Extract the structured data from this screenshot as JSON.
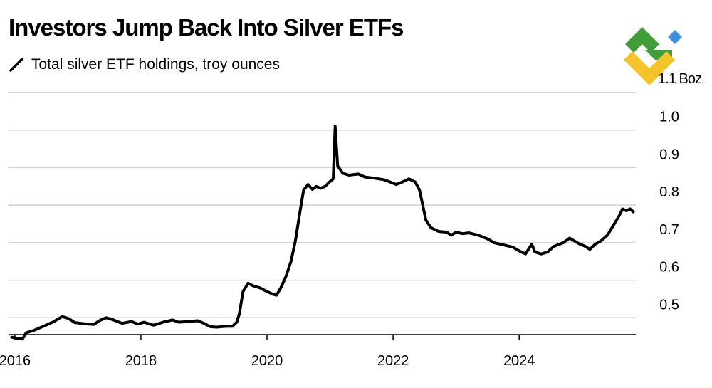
{
  "chart_data": {
    "type": "line",
    "title": "Investors Jump Back Into Silver ETFs",
    "legend": "Total silver ETF holdings, troy ounces",
    "y_unit_label": "1.1 Boz",
    "y_ticks": [
      0.5,
      0.6,
      0.7,
      0.8,
      0.9,
      1.0
    ],
    "y_tick_labels": [
      "0.5",
      "0.6",
      "0.7",
      "0.8",
      "0.9",
      "1.0"
    ],
    "ylim": [
      0.455,
      1.1
    ],
    "xlim": [
      2015.9,
      2025.85
    ],
    "x_ticks": [
      2016,
      2018,
      2020,
      2022,
      2024
    ],
    "x_tick_labels": [
      "2016",
      "2018",
      "2020",
      "2022",
      "2024"
    ],
    "grid": true,
    "line_color": "#000000",
    "series": [
      {
        "name": "Total silver ETF holdings",
        "points": [
          [
            2015.95,
            0.448
          ],
          [
            2016.05,
            0.445
          ],
          [
            2016.12,
            0.443
          ],
          [
            2016.18,
            0.46
          ],
          [
            2016.3,
            0.466
          ],
          [
            2016.45,
            0.477
          ],
          [
            2016.6,
            0.488
          ],
          [
            2016.75,
            0.503
          ],
          [
            2016.85,
            0.498
          ],
          [
            2016.95,
            0.487
          ],
          [
            2017.1,
            0.484
          ],
          [
            2017.25,
            0.482
          ],
          [
            2017.35,
            0.493
          ],
          [
            2017.45,
            0.5
          ],
          [
            2017.55,
            0.495
          ],
          [
            2017.7,
            0.485
          ],
          [
            2017.85,
            0.49
          ],
          [
            2017.95,
            0.483
          ],
          [
            2018.05,
            0.488
          ],
          [
            2018.2,
            0.48
          ],
          [
            2018.35,
            0.488
          ],
          [
            2018.5,
            0.494
          ],
          [
            2018.6,
            0.488
          ],
          [
            2018.75,
            0.49
          ],
          [
            2018.9,
            0.492
          ],
          [
            2019.0,
            0.485
          ],
          [
            2019.1,
            0.476
          ],
          [
            2019.2,
            0.475
          ],
          [
            2019.35,
            0.477
          ],
          [
            2019.45,
            0.477
          ],
          [
            2019.52,
            0.488
          ],
          [
            2019.56,
            0.51
          ],
          [
            2019.62,
            0.57
          ],
          [
            2019.7,
            0.592
          ],
          [
            2019.78,
            0.585
          ],
          [
            2019.88,
            0.58
          ],
          [
            2020.0,
            0.57
          ],
          [
            2020.1,
            0.562
          ],
          [
            2020.15,
            0.56
          ],
          [
            2020.22,
            0.58
          ],
          [
            2020.3,
            0.61
          ],
          [
            2020.38,
            0.65
          ],
          [
            2020.45,
            0.705
          ],
          [
            2020.52,
            0.78
          ],
          [
            2020.58,
            0.84
          ],
          [
            2020.65,
            0.855
          ],
          [
            2020.72,
            0.842
          ],
          [
            2020.78,
            0.85
          ],
          [
            2020.85,
            0.845
          ],
          [
            2020.92,
            0.85
          ],
          [
            2020.98,
            0.86
          ],
          [
            2021.05,
            0.87
          ],
          [
            2021.08,
            1.01
          ],
          [
            2021.12,
            0.905
          ],
          [
            2021.2,
            0.885
          ],
          [
            2021.3,
            0.88
          ],
          [
            2021.45,
            0.883
          ],
          [
            2021.55,
            0.875
          ],
          [
            2021.7,
            0.872
          ],
          [
            2021.85,
            0.868
          ],
          [
            2021.95,
            0.862
          ],
          [
            2022.05,
            0.855
          ],
          [
            2022.15,
            0.862
          ],
          [
            2022.25,
            0.87
          ],
          [
            2022.35,
            0.862
          ],
          [
            2022.42,
            0.84
          ],
          [
            2022.47,
            0.8
          ],
          [
            2022.52,
            0.76
          ],
          [
            2022.6,
            0.74
          ],
          [
            2022.72,
            0.73
          ],
          [
            2022.85,
            0.728
          ],
          [
            2022.92,
            0.72
          ],
          [
            2023.0,
            0.728
          ],
          [
            2023.1,
            0.724
          ],
          [
            2023.2,
            0.726
          ],
          [
            2023.35,
            0.72
          ],
          [
            2023.5,
            0.71
          ],
          [
            2023.6,
            0.7
          ],
          [
            2023.75,
            0.694
          ],
          [
            2023.9,
            0.688
          ],
          [
            2024.0,
            0.678
          ],
          [
            2024.1,
            0.67
          ],
          [
            2024.2,
            0.696
          ],
          [
            2024.25,
            0.675
          ],
          [
            2024.35,
            0.67
          ],
          [
            2024.45,
            0.675
          ],
          [
            2024.55,
            0.69
          ],
          [
            2024.7,
            0.7
          ],
          [
            2024.8,
            0.712
          ],
          [
            2024.88,
            0.704
          ],
          [
            2024.95,
            0.697
          ],
          [
            2025.05,
            0.69
          ],
          [
            2025.12,
            0.682
          ],
          [
            2025.2,
            0.695
          ],
          [
            2025.3,
            0.705
          ],
          [
            2025.4,
            0.72
          ],
          [
            2025.5,
            0.748
          ],
          [
            2025.58,
            0.77
          ],
          [
            2025.64,
            0.79
          ],
          [
            2025.7,
            0.785
          ],
          [
            2025.76,
            0.79
          ],
          [
            2025.81,
            0.782
          ]
        ]
      }
    ]
  }
}
